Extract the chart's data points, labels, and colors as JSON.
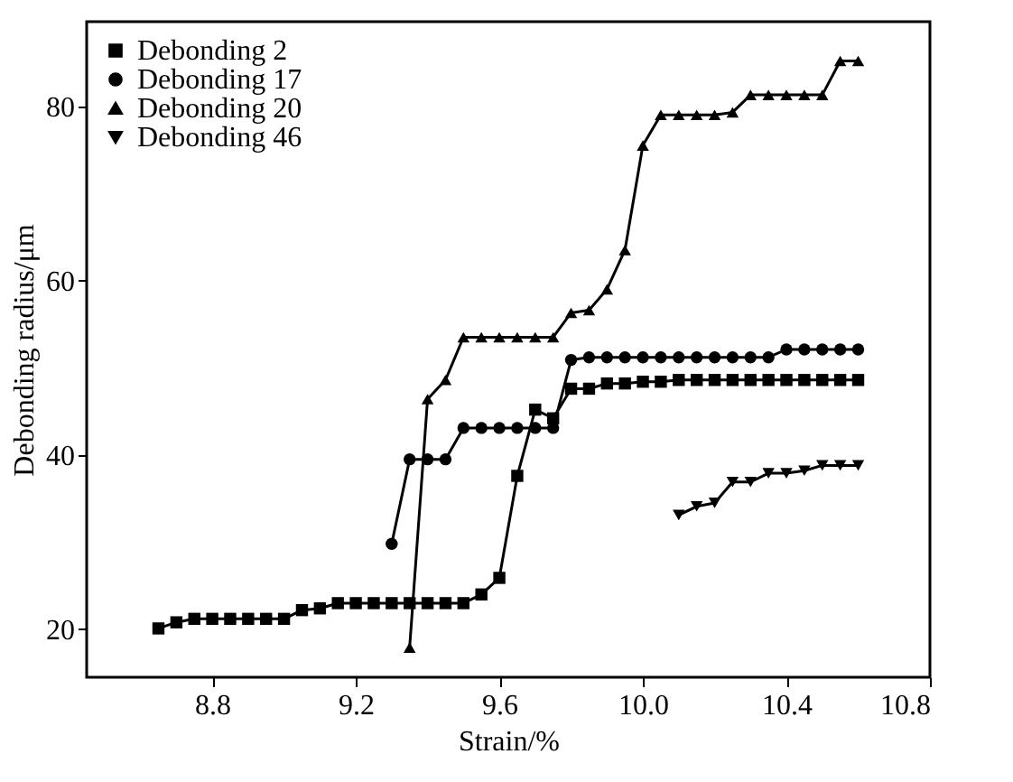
{
  "chart_data": {
    "type": "line",
    "xlabel": "Strain/%",
    "ylabel": "Debonding radius/μm",
    "xlim": [
      8.45,
      10.8
    ],
    "ylim": [
      14.5,
      89.7
    ],
    "xticks": [
      8.8,
      9.2,
      9.6,
      {
        "value": 10.0,
        "label": "10.0"
      },
      10.4,
      10.8
    ],
    "yticks": [
      20,
      40,
      60,
      80
    ],
    "grid": false,
    "legend": "top left",
    "series": [
      {
        "name": "Debonding 2",
        "color": "#000000",
        "marker": "square",
        "x": [
          8.65,
          8.7,
          8.75,
          8.8,
          8.85,
          8.9,
          8.95,
          9.0,
          9.05,
          9.1,
          9.15,
          9.2,
          9.25,
          9.3,
          9.35,
          9.4,
          9.45,
          9.5,
          9.55,
          9.6,
          9.65,
          9.7,
          9.75,
          9.8,
          9.85,
          9.9,
          9.95,
          10.0,
          10.05,
          10.1,
          10.15,
          10.2,
          10.25,
          10.3,
          10.35,
          10.4,
          10.45,
          10.5,
          10.55,
          10.6
        ],
        "values": [
          20.1,
          20.8,
          21.2,
          21.2,
          21.2,
          21.2,
          21.2,
          21.2,
          22.2,
          22.4,
          23,
          23,
          23,
          23,
          23,
          23,
          23,
          23,
          24,
          25.9,
          37.6,
          45.2,
          44.2,
          47.6,
          47.6,
          48.2,
          48.2,
          48.4,
          48.4,
          48.6,
          48.6,
          48.6,
          48.6,
          48.6,
          48.6,
          48.6,
          48.6,
          48.6,
          48.6,
          48.6
        ]
      },
      {
        "name": "Debonding 17",
        "color": "#000000",
        "marker": "circle",
        "x": [
          9.3,
          9.35,
          9.4,
          9.45,
          9.5,
          9.55,
          9.6,
          9.65,
          9.7,
          9.75,
          9.8,
          9.85,
          9.9,
          9.95,
          10.0,
          10.05,
          10.1,
          10.15,
          10.2,
          10.25,
          10.3,
          10.35,
          10.4,
          10.45,
          10.5,
          10.55,
          10.6
        ],
        "values": [
          29.8,
          39.5,
          39.5,
          39.5,
          43.1,
          43.1,
          43.1,
          43.1,
          43.1,
          43.1,
          50.9,
          51.2,
          51.2,
          51.2,
          51.2,
          51.2,
          51.2,
          51.2,
          51.2,
          51.2,
          51.2,
          51.2,
          52.1,
          52.1,
          52.1,
          52.1,
          52.1
        ]
      },
      {
        "name": "Debonding 20",
        "color": "#000000",
        "marker": "triangle",
        "x": [
          9.35,
          9.4,
          9.45,
          9.5,
          9.55,
          9.6,
          9.65,
          9.7,
          9.75,
          9.8,
          9.85,
          9.9,
          9.95,
          10.0,
          10.05,
          10.1,
          10.15,
          10.2,
          10.25,
          10.3,
          10.35,
          10.4,
          10.45,
          10.5,
          10.55,
          10.6
        ],
        "values": [
          17.9,
          46.4,
          48.6,
          53.5,
          53.5,
          53.5,
          53.5,
          53.5,
          53.5,
          56.3,
          56.6,
          59,
          63.5,
          75.5,
          79,
          79,
          79,
          79,
          79.3,
          81.3,
          81.3,
          81.3,
          81.3,
          81.3,
          85.2,
          85.2
        ]
      },
      {
        "name": "Debonding 46",
        "color": "#000000",
        "marker": "triangle-down",
        "x": [
          10.1,
          10.15,
          10.2,
          10.25,
          10.3,
          10.35,
          10.4,
          10.45,
          10.5,
          10.55,
          10.6
        ],
        "values": [
          33.1,
          34.1,
          34.5,
          36.9,
          36.9,
          37.9,
          37.9,
          38.2,
          38.8,
          38.8,
          38.8
        ]
      }
    ]
  }
}
